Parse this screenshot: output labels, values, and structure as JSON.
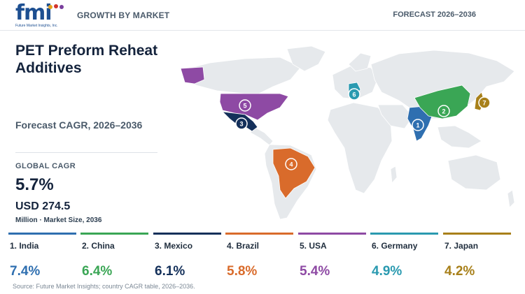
{
  "header": {
    "logo_text": "fmi",
    "logo_subtext": "Future Market Insights, Inc.",
    "left_label": "GROWTH BY MARKET",
    "right_label": "FORECAST 2026–2036"
  },
  "panel": {
    "title": "PET Preform Reheat Additives",
    "subtitle": "Forecast CAGR, 2026–2036",
    "global_cagr_label": "GLOBAL CAGR",
    "global_cagr_value": "5.7%",
    "market_size_value": "USD 274.5",
    "market_size_label": "Million · Market Size, 2036"
  },
  "map": {
    "base_color": "#e6e9ec",
    "markers": [
      {
        "rank": "1",
        "country": "India",
        "color": "#2f6fb0"
      },
      {
        "rank": "2",
        "country": "China",
        "color": "#3aa655"
      },
      {
        "rank": "3",
        "country": "Mexico",
        "color": "#14305a"
      },
      {
        "rank": "4",
        "country": "Brazil",
        "color": "#d96b2b"
      },
      {
        "rank": "5",
        "country": "USA",
        "color": "#8e4aa4"
      },
      {
        "rank": "6",
        "country": "Germany",
        "color": "#2a9ab0"
      },
      {
        "rank": "7",
        "country": "Japan",
        "color": "#a8801a"
      }
    ]
  },
  "countries": [
    {
      "label": "1. India",
      "cagr": "7.4%",
      "color": "#2f6fb0"
    },
    {
      "label": "2. China",
      "cagr": "6.4%",
      "color": "#3aa655"
    },
    {
      "label": "3. Mexico",
      "cagr": "6.1%",
      "color": "#14305a"
    },
    {
      "label": "4. Brazil",
      "cagr": "5.8%",
      "color": "#d96b2b"
    },
    {
      "label": "5. USA",
      "cagr": "5.4%",
      "color": "#8e4aa4"
    },
    {
      "label": "6. Germany",
      "cagr": "4.9%",
      "color": "#2a9ab0"
    },
    {
      "label": "7. Japan",
      "cagr": "4.2%",
      "color": "#a8801a"
    }
  ],
  "source": "Source: Future Market Insights; country CAGR table, 2026–2036."
}
